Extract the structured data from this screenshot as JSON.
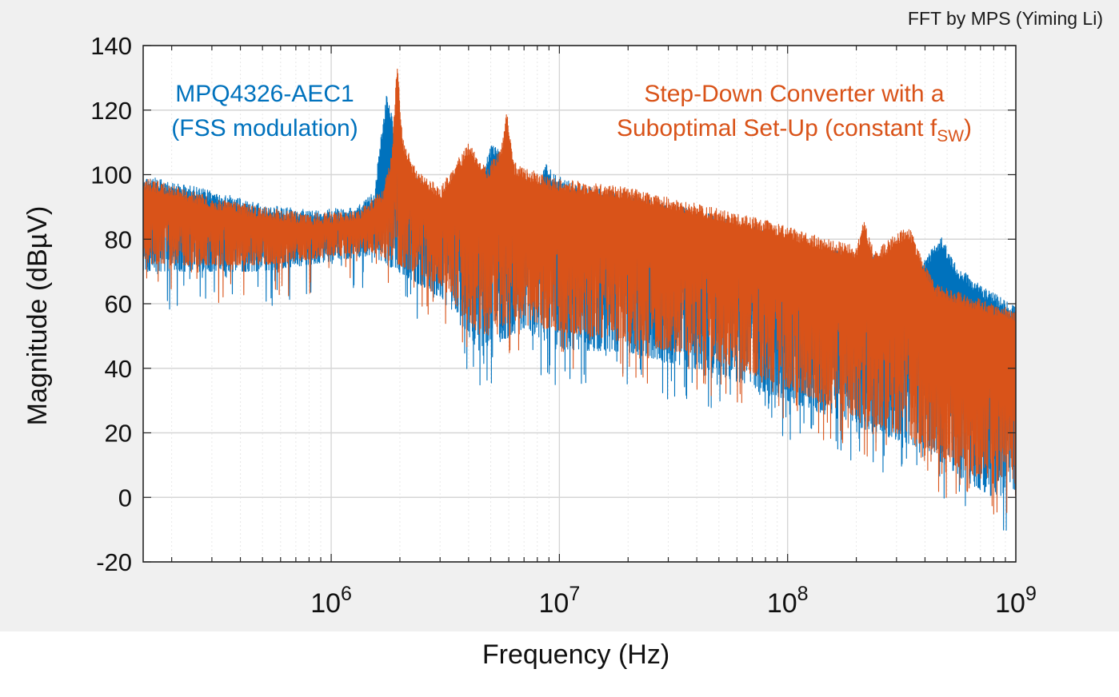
{
  "credit": "FFT by MPS (Yiming Li)",
  "chart_data": {
    "type": "line",
    "xlabel": "Frequency (Hz)",
    "ylabel": "Magnitude (dBµV)",
    "xscale": "log",
    "xlim": [
      150000,
      1000000000
    ],
    "ylim": [
      -20,
      140
    ],
    "yticks": [
      "-20",
      "0",
      "20",
      "40",
      "60",
      "80",
      "100",
      "120",
      "140"
    ],
    "xticks": [
      {
        "base": "10",
        "exp": "6",
        "value": 1000000
      },
      {
        "base": "10",
        "exp": "7",
        "value": 10000000
      },
      {
        "base": "10",
        "exp": "8",
        "value": 100000000
      },
      {
        "base": "10",
        "exp": "9",
        "value": 1000000000
      }
    ],
    "grid": true,
    "colors": {
      "blue": "#0072bd",
      "orange": "#d95319"
    },
    "annotations": {
      "blue_line1": "MPQ4326-AEC1",
      "blue_line2": "(FSS modulation)",
      "orange_line1": "Step-Down Converter with a",
      "orange_line2_prefix": "Suboptimal Set-Up (constant f",
      "orange_line2_sub": "SW",
      "orange_line2_suffix": ")"
    },
    "series": [
      {
        "color": "#0072bd",
        "peak_envelope": {
          "x": [
            150000,
            200000,
            300000,
            500000,
            800000,
            1300000,
            1550000,
            1650000,
            1750000,
            1850000,
            2000000,
            2500000,
            3000000,
            3400000,
            3600000,
            3800000,
            4300000,
            5000000,
            5300000,
            5600000,
            6200000,
            7000000,
            8000000,
            8800000,
            9500000,
            12000000,
            20000000,
            40000000,
            80000000,
            120000000,
            200000000,
            300000000,
            400000000,
            470000000,
            550000000,
            700000000,
            1000000000
          ],
          "y": [
            100,
            98,
            95,
            91,
            89,
            90,
            95,
            112,
            125,
            118,
            103,
            98,
            92,
            100,
            101,
            90,
            95,
            109,
            110,
            105,
            98,
            101,
            96,
            104,
            100,
            97,
            94,
            89,
            83,
            79,
            76,
            74,
            74,
            81,
            72,
            66,
            59
          ]
        },
        "lower_envelope": {
          "x": [
            150000,
            500000,
            1500000,
            3000000,
            4500000,
            7000000,
            9000000,
            20000000,
            50000000,
            100000000,
            200000000,
            400000000,
            600000000,
            800000000,
            1000000000
          ],
          "y": [
            70,
            70,
            75,
            62,
            45,
            52,
            46,
            45,
            38,
            30,
            22,
            15,
            5,
            0,
            0
          ]
        }
      },
      {
        "color": "#d95319",
        "peak_envelope": {
          "x": [
            150000,
            200000,
            300000,
            500000,
            800000,
            1300000,
            1700000,
            1850000,
            1950000,
            2050000,
            2300000,
            3000000,
            4000000,
            4800000,
            5500000,
            5900000,
            6300000,
            7000000,
            8000000,
            9000000,
            12000000,
            20000000,
            40000000,
            80000000,
            150000000,
            200000000,
            215000000,
            240000000,
            300000000,
            340000000,
            380000000,
            450000000,
            600000000,
            1000000000
          ],
          "y": [
            99,
            97,
            93,
            90,
            88,
            89,
            96,
            108,
            136,
            112,
            103,
            96,
            110,
            102,
            108,
            120,
            104,
            102,
            101,
            99,
            98,
            96,
            91,
            86,
            80,
            78,
            86,
            76,
            82,
            84,
            76,
            66,
            63,
            58
          ]
        },
        "lower_envelope": {
          "x": [
            150000,
            500000,
            1500000,
            3000000,
            4500000,
            7000000,
            9000000,
            20000000,
            50000000,
            100000000,
            200000000,
            400000000,
            600000000,
            800000000,
            1000000000
          ],
          "y": [
            72,
            72,
            76,
            66,
            50,
            56,
            52,
            48,
            42,
            34,
            25,
            16,
            8,
            4,
            8
          ]
        }
      }
    ]
  }
}
